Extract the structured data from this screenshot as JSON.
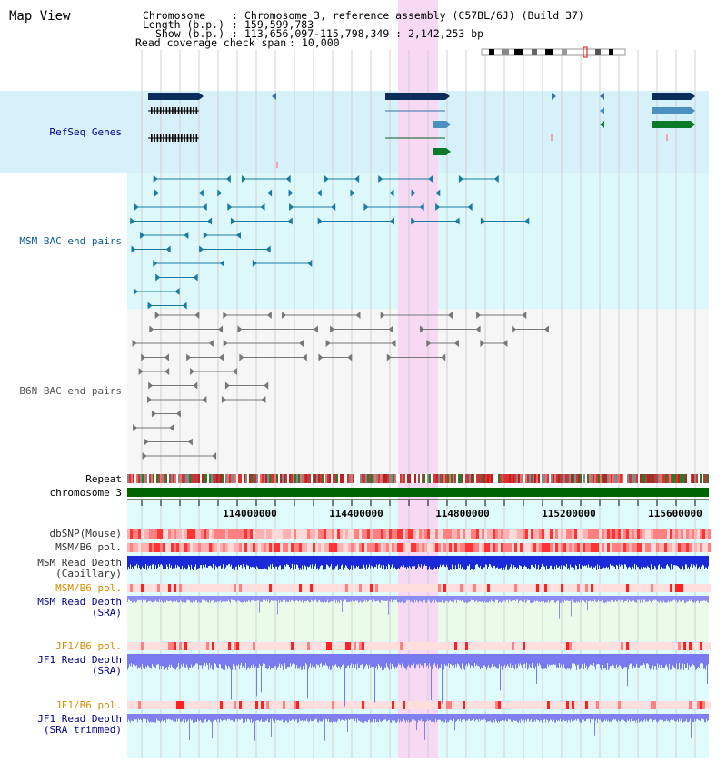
{
  "view_title": "Map View",
  "info": {
    "chromosome_label": "Chromosome",
    "chromosome_value": "Chromosome 3, reference assembly (C57BL/6J) (Build 37)",
    "length_label": "Length (b.p.)",
    "length_value": "159,599,783",
    "show_label": "Show (b.p.)",
    "show_value": "113,656,097-115,798,349 : 2,142,253 bp",
    "coverage_label": "Read coverage check span",
    "coverage_value": "10,000"
  },
  "tracks": {
    "refseq": "RefSeq Genes",
    "msm_bac": "MSM BAC end pairs",
    "b6n_bac": "B6N BAC end pairs",
    "repeat": "Repeat",
    "chromosome": "chromosome 3",
    "dbsnp": "dbSNP(Mouse)",
    "msm_b6_pol1": "MSM/B6 pol.",
    "msm_depth_cap_1": "MSM Read Depth",
    "msm_depth_cap_2": "(Capillary)",
    "msm_b6_pol2": "MSM/B6 pol.",
    "msm_depth_sra_1": "MSM Read Depth",
    "msm_depth_sra_2": "(SRA)",
    "jf1_b6_pol1": "JF1/B6 pol.",
    "jf1_depth_sra_1": "JF1 Read Depth",
    "jf1_depth_sra_2": "(SRA)",
    "jf1_b6_pol2": "JF1/B6 pol.",
    "jf1_depth_trim_1": "JF1 Read Depth",
    "jf1_depth_trim_2": "(SRA trimmed)"
  },
  "axis_ticks": [
    "114000000",
    "114400000",
    "114800000",
    "115200000",
    "115600000"
  ],
  "colors": {
    "refseq_bg": "#d7f1fa",
    "msm_bg": "#dcf8fb",
    "highlight": "#f7d9f4",
    "msm_label": "#0b5c8a",
    "orange_label": "#d98c00",
    "blue_label": "#00008b",
    "chromosome_bar": "#006400"
  }
}
